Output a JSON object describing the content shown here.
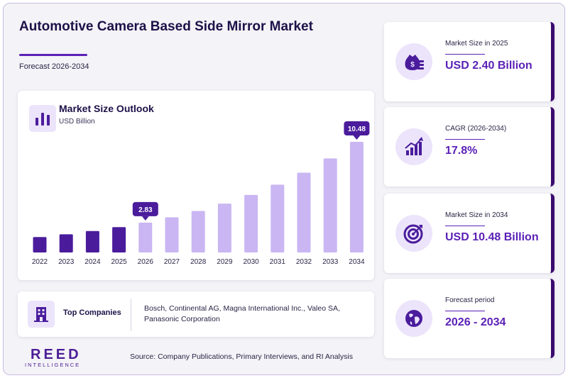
{
  "header": {
    "title": "Automotive Camera Based Side Mirror Market",
    "subtitle": "Forecast 2026-2034"
  },
  "chart_card": {
    "icon": "bar-chart-icon",
    "title": "Market Size Outlook",
    "unit": "USD Billion"
  },
  "chart_data": {
    "type": "bar",
    "title": "Market Size Outlook",
    "ylabel": "USD Billion",
    "categories": [
      "2022",
      "2023",
      "2024",
      "2025",
      "2026",
      "2027",
      "2028",
      "2029",
      "2030",
      "2031",
      "2032",
      "2033",
      "2034"
    ],
    "values": [
      1.46,
      1.72,
      2.03,
      2.4,
      2.83,
      3.33,
      3.93,
      4.63,
      5.45,
      6.42,
      7.56,
      8.91,
      10.48
    ],
    "ylim": [
      0,
      10.48
    ],
    "grid": false,
    "callouts": [
      {
        "category": "2026",
        "label": "2.83"
      },
      {
        "category": "2034",
        "label": "10.48"
      }
    ],
    "colors": {
      "historical": "#4a1c9c",
      "forecast": "#c9b6f2",
      "callout": "#4a1c9c"
    }
  },
  "companies": {
    "icon": "building-icon",
    "label": "Top Companies",
    "list": "Bosch, Continental AG, Magna International Inc., Valeo SA, Panasonic Corporation"
  },
  "logo": {
    "main": "REED",
    "sub": "INTELLIGENCE"
  },
  "source": "Source: Company Publications, Primary Interviews, and RI Analysis",
  "stats": [
    {
      "icon": "money-bag-icon",
      "label": "Market Size in 2025",
      "value": "USD 2.40 Billion"
    },
    {
      "icon": "growth-chart-icon",
      "label": "CAGR (2026-2034)",
      "value": "17.8%"
    },
    {
      "icon": "target-icon",
      "label": "Market Size in 2034",
      "value": "USD 10.48 Billion"
    },
    {
      "icon": "globe-icon",
      "label": "Forecast period",
      "value": "2026 - 2034"
    }
  ],
  "colors": {
    "accent": "#5b21b6",
    "dark": "#3b0a6e",
    "light": "#ece4fb"
  }
}
